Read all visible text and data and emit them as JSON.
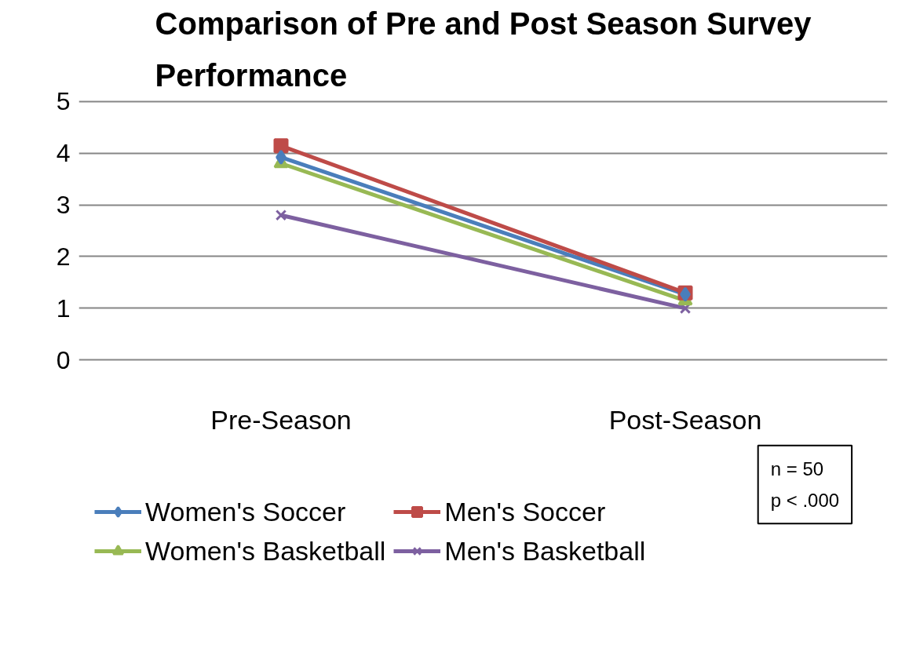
{
  "chart_data": {
    "type": "line",
    "title": "Comparison of Pre and Post Season Survey Performance",
    "categories": [
      "Pre-Season",
      "Post-Season"
    ],
    "series": [
      {
        "name": "Women's Soccer",
        "color": "#4a7ebb",
        "marker": "diamond",
        "values": [
          3.92,
          1.27
        ]
      },
      {
        "name": "Men's Soccer",
        "color": "#be4b48",
        "marker": "square",
        "values": [
          4.14,
          1.3
        ]
      },
      {
        "name": "Women's Basketball",
        "color": "#98b954",
        "marker": "triangle",
        "values": [
          3.8,
          1.15
        ]
      },
      {
        "name": "Men's Basketball",
        "color": "#7d60a0",
        "marker": "cross",
        "values": [
          2.8,
          1.0
        ]
      }
    ],
    "ylim": [
      0,
      5
    ],
    "yticks": [
      0,
      1,
      2,
      3,
      4,
      5
    ],
    "grid": "y",
    "legend": "bottom",
    "annotations": [
      "n = 50",
      "p < .000"
    ]
  }
}
